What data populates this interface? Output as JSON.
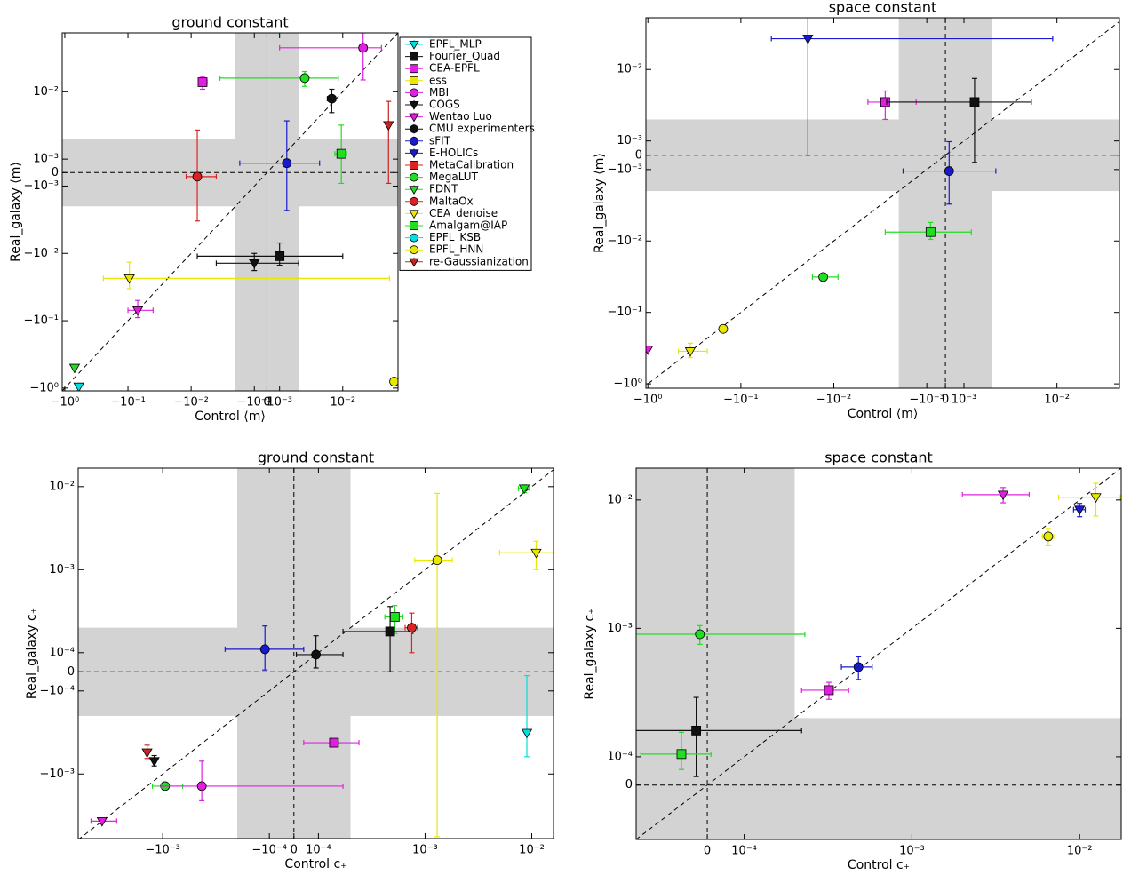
{
  "chart_data": [
    {
      "type": "scatter",
      "title": "ground constant",
      "x_label": "Control ⟨m⟩",
      "y_label": "Real_galaxy ⟨m⟩",
      "xscale": "symlog",
      "yscale": "symlog",
      "linthresh": 0.001,
      "linscale": 0.2,
      "shade": 0.002,
      "legend": "upper right",
      "xlim": [
        -1.1,
        0.075
      ],
      "ylim": [
        -1.1,
        0.075
      ],
      "xticks": [
        {
          "value": -1,
          "label": "−10⁰"
        },
        {
          "value": -0.1,
          "label": "−10⁻¹"
        },
        {
          "value": -0.01,
          "label": "−10⁻²"
        },
        {
          "value": -0.001,
          "label": "−10⁻³"
        },
        0,
        {
          "value": 0.001,
          "label": "10⁻³"
        },
        {
          "value": 0.01,
          "label": "10⁻²"
        }
      ],
      "yticks": [
        {
          "value": -1,
          "label": "−10⁰"
        },
        {
          "value": -0.1,
          "label": "−10⁻¹"
        },
        {
          "value": -0.01,
          "label": "−10⁻²"
        },
        {
          "value": -0.001,
          "label": "−10⁻³"
        },
        0,
        {
          "value": 0.001,
          "label": "10⁻³"
        },
        {
          "value": 0.01,
          "label": "10⁻²"
        }
      ],
      "series": [
        {
          "name": "EPFL_MLP",
          "color": "#00e0e0",
          "marker": "v",
          "x": -0.6,
          "y": -0.95,
          "xerr": null,
          "yerr": null
        },
        {
          "name": "Fourier_Quad",
          "color": "#111111",
          "marker": "s",
          "x": 0.001,
          "y": -0.011,
          "xerr": 0.009,
          "yerr": 0.004
        },
        {
          "name": "CEA-EPFL",
          "color": "#e020e0",
          "marker": "s",
          "x": -0.0066,
          "y": 0.0139,
          "xerr": 0.001,
          "yerr": 0.003
        },
        {
          "name": "ess",
          "color": "#e8e800",
          "marker": "s",
          "x": null,
          "y": null,
          "xerr": null,
          "yerr": null
        },
        {
          "name": "MBI",
          "color": "#e020e0",
          "marker": "o",
          "x": 0.021,
          "y": 0.045,
          "xerr": 0.02,
          "yerr": 0.03
        },
        {
          "name": "COGS",
          "color": "#111111",
          "marker": "v",
          "x": -0.001,
          "y": -0.014,
          "xerr": 0.003,
          "yerr": 0.004
        },
        {
          "name": "Wentao Luo",
          "color": "#e020e0",
          "marker": "v",
          "x": -0.07,
          "y": -0.07,
          "xerr": 0.03,
          "yerr": 0.02
        },
        {
          "name": "CMU experimenters",
          "color": "#111111",
          "marker": "o",
          "x": 0.0067,
          "y": 0.0079,
          "xerr": 0.001,
          "yerr": 0.003
        },
        {
          "name": "sFIT",
          "color": "#1a1acc",
          "marker": "o",
          "x": 0.0013,
          "y": 0.0007,
          "xerr": 0.003,
          "yerr": 0.003
        },
        {
          "name": "E-HOLICs",
          "color": "#1a1acc",
          "marker": "v",
          "x": null,
          "y": null,
          "xerr": null,
          "yerr": null
        },
        {
          "name": "MetaCalibration",
          "color": "#dd2222",
          "marker": "s",
          "x": null,
          "y": null,
          "xerr": null,
          "yerr": null
        },
        {
          "name": "MegaLUT",
          "color": "#22dd22",
          "marker": "o",
          "x": 0.0025,
          "y": 0.016,
          "xerr": 0.006,
          "yerr": 0.004
        },
        {
          "name": "FDNT",
          "color": "#22dd22",
          "marker": "v",
          "x": -0.7,
          "y": -0.5,
          "xerr": null,
          "yerr": null
        },
        {
          "name": "MaltaOx",
          "color": "#dd2222",
          "marker": "o",
          "x": -0.008,
          "y": -0.0003,
          "xerr": 0.004,
          "yerr": 0.003
        },
        {
          "name": "CEA_denoise",
          "color": "#e8e800",
          "marker": "v",
          "x": -0.095,
          "y": -0.0235,
          "xerr": 0.15,
          "yerr": 0.01
        },
        {
          "name": "Amalgam@IAP",
          "color": "#22dd22",
          "marker": "s",
          "x": 0.0095,
          "y": 0.0012,
          "xerr": 0.002,
          "yerr": 0.002
        },
        {
          "name": "EPFL_KSB",
          "color": "#00e0e0",
          "marker": "o",
          "x": null,
          "y": null,
          "xerr": null,
          "yerr": null
        },
        {
          "name": "EPFL_HNN",
          "color": "#e8e800",
          "marker": "o",
          "x": 0.065,
          "y": -0.8,
          "xerr": 0.005,
          "yerr": 0.1
        },
        {
          "name": "re-Gaussianization",
          "color": "#cc2222",
          "marker": "v",
          "x": 0.053,
          "y": 0.0032,
          "xerr": null,
          "yerr": 0.004
        }
      ]
    },
    {
      "type": "scatter",
      "title": "space constant",
      "x_label": "Control ⟨m⟩",
      "y_label": "Real_galaxy ⟨m⟩",
      "xscale": "symlog",
      "yscale": "symlog",
      "linthresh": 0.001,
      "linscale": 0.2,
      "shade": 0.002,
      "xlim": [
        -1.05,
        0.047
      ],
      "ylim": [
        -1.15,
        0.053
      ],
      "xticks": [
        {
          "value": -1,
          "label": "−10⁰"
        },
        {
          "value": -0.1,
          "label": "−10⁻¹"
        },
        {
          "value": -0.01,
          "label": "−10⁻²"
        },
        {
          "value": -0.001,
          "label": "−10⁻³"
        },
        0,
        {
          "value": 0.001,
          "label": "10⁻³"
        },
        {
          "value": 0.01,
          "label": "10⁻²"
        }
      ],
      "yticks": [
        {
          "value": -1,
          "label": "−10⁰"
        },
        {
          "value": -0.1,
          "label": "−10⁻¹"
        },
        {
          "value": -0.01,
          "label": "−10⁻²"
        },
        {
          "value": -0.001,
          "label": "−10⁻³"
        },
        0,
        {
          "value": 0.001,
          "label": "10⁻³"
        },
        {
          "value": 0.01,
          "label": "10⁻²"
        }
      ],
      "series": [
        {
          "color": "#1a1acc",
          "marker": "v",
          "x": -0.019,
          "y": 0.027,
          "xerr": 0.028,
          "yerr": 0.027
        },
        {
          "color": "#e020e0",
          "marker": "s",
          "x": -0.0028,
          "y": 0.0035,
          "xerr": 0.0015,
          "yerr": 0.0015
        },
        {
          "color": "#111111",
          "marker": "s",
          "x": 0.0013,
          "y": 0.0035,
          "xerr": 0.004,
          "yerr": 0.004
        },
        {
          "color": "#1a1acc",
          "marker": "o",
          "x": 0.0002,
          "y": -0.00105,
          "xerr": 0.002,
          "yerr": 0.002
        },
        {
          "color": "#22dd22",
          "marker": "s",
          "x": -0.0008,
          "y": -0.0075,
          "xerr": 0.002,
          "yerr": 0.002
        },
        {
          "color": "#22dd22",
          "marker": "o",
          "x": -0.013,
          "y": -0.032,
          "xerr": 0.004,
          "yerr": null
        },
        {
          "color": "#e8e800",
          "marker": "o",
          "x": -0.155,
          "y": -0.17,
          "xerr": null,
          "yerr": null
        },
        {
          "color": "#e8e800",
          "marker": "v",
          "x": -0.35,
          "y": -0.35,
          "xerr": 0.12,
          "yerr": 0.08
        },
        {
          "color": "#e020e0",
          "marker": "v",
          "x": -1.0,
          "y": -0.33,
          "xerr": null,
          "yerr": null
        }
      ]
    },
    {
      "type": "scatter",
      "title": "ground constant",
      "x_label": "Control c₊",
      "y_label": "Real_galaxy c₊",
      "xscale": "symlog",
      "yscale": "symlog",
      "linthresh": 0.0001,
      "linscale": 0.23,
      "shade": 0.0002,
      "xlim": [
        -0.0062,
        0.016
      ],
      "ylim": [
        -0.006,
        0.0167
      ],
      "xticks": [
        {
          "value": -0.001,
          "label": "−10⁻³"
        },
        {
          "value": -0.0001,
          "label": "−10⁻⁴"
        },
        0,
        {
          "value": 0.0001,
          "label": "10⁻⁴"
        },
        {
          "value": 0.001,
          "label": "10⁻³"
        },
        {
          "value": 0.01,
          "label": "10⁻²"
        }
      ],
      "yticks": [
        {
          "value": -0.001,
          "label": "−10⁻³"
        },
        {
          "value": -0.0001,
          "label": "−10⁻⁴"
        },
        0,
        {
          "value": 0.0001,
          "label": "10⁻⁴"
        },
        {
          "value": 0.001,
          "label": "10⁻³"
        },
        {
          "value": 0.01,
          "label": "10⁻²"
        }
      ],
      "series": [
        {
          "color": "#22dd22",
          "marker": "v",
          "x": 0.0085,
          "y": 0.0095,
          "xerr": 0.001,
          "yerr": 0.001
        },
        {
          "color": "#e8e800",
          "marker": "v",
          "x": 0.011,
          "y": 0.0016,
          "xerr": 0.006,
          "yerr": 0.0006
        },
        {
          "color": "#e8e800",
          "marker": "o",
          "x": 0.0013,
          "y": 0.0013,
          "xerr": 0.0005,
          "yerr": 0.007
        },
        {
          "color": "#22dd22",
          "marker": "s",
          "x": 0.00052,
          "y": 0.00027,
          "xerr": 0.0001,
          "yerr": 0.0001
        },
        {
          "color": "#111111",
          "marker": "s",
          "x": 0.00047,
          "y": 0.00018,
          "xerr": 0.0003,
          "yerr": 0.00018
        },
        {
          "color": "#dd2222",
          "marker": "o",
          "x": 0.00075,
          "y": 0.0002,
          "xerr": 0.0001,
          "yerr": 0.0001
        },
        {
          "color": "#1a1acc",
          "marker": "o",
          "x": -0.00011,
          "y": 0.00011,
          "xerr": 0.00015,
          "yerr": 0.0001
        },
        {
          "color": "#111111",
          "marker": "o",
          "x": 9e-05,
          "y": 9e-05,
          "xerr": 8e-05,
          "yerr": 7e-05
        },
        {
          "color": "#00e0e0",
          "marker": "v",
          "x": 0.009,
          "y": -0.00032,
          "xerr": null,
          "yerr": 0.0003
        },
        {
          "color": "#e020e0",
          "marker": "s",
          "x": 0.00014,
          "y": -0.00042,
          "xerr": 0.0001,
          "yerr": null
        },
        {
          "color": "#cc2222",
          "marker": "v",
          "x": -0.0014,
          "y": -0.00055,
          "xerr": null,
          "yerr": 0.0001
        },
        {
          "color": "#111111",
          "marker": "v",
          "x": -0.0012,
          "y": -0.0007,
          "xerr": null,
          "yerr": 0.0001
        },
        {
          "color": "#22dd22",
          "marker": "o",
          "x": -0.00095,
          "y": -0.0014,
          "xerr": 0.0003,
          "yerr": null
        },
        {
          "color": "#e020e0",
          "marker": "o",
          "x": -0.00043,
          "y": -0.0014,
          "xerr": 0.0006,
          "yerr": 0.0007
        },
        {
          "color": "#e020e0",
          "marker": "v",
          "x": -0.0037,
          "y": -0.0037,
          "xerr": 0.001,
          "yerr": null
        }
      ]
    },
    {
      "type": "scatter",
      "title": "space constant",
      "x_label": "Control c₊",
      "y_label": "Real_galaxy c₊",
      "xscale": "symlog",
      "yscale": "symlog",
      "linthresh": 0.0001,
      "linscale": 0.22,
      "shade": 0.0002,
      "xlim": [
        -0.00016,
        0.0177
      ],
      "ylim": [
        -0.00016,
        0.0177
      ],
      "xticks": [
        0,
        {
          "value": 0.0001,
          "label": "10⁻⁴"
        },
        {
          "value": 0.001,
          "label": "10⁻³"
        },
        {
          "value": 0.01,
          "label": "10⁻²"
        }
      ],
      "yticks": [
        0,
        {
          "value": 0.0001,
          "label": "10⁻⁴"
        },
        {
          "value": 0.001,
          "label": "10⁻³"
        },
        {
          "value": 0.01,
          "label": "10⁻²"
        }
      ],
      "series": [
        {
          "color": "#e020e0",
          "marker": "v",
          "x": 0.0035,
          "y": 0.011,
          "xerr": 0.0015,
          "yerr": 0.0015
        },
        {
          "color": "#e8e800",
          "marker": "v",
          "x": 0.0125,
          "y": 0.0105,
          "xerr": 0.005,
          "yerr": 0.003
        },
        {
          "color": "#1a1acc",
          "marker": "v",
          "x": 0.01,
          "y": 0.0084,
          "xerr": 0.0008,
          "yerr": 0.001
        },
        {
          "color": "#e8e800",
          "marker": "o",
          "x": 0.0065,
          "y": 0.0052,
          "xerr": 0.0005,
          "yerr": 0.0008
        },
        {
          "color": "#22dd22",
          "marker": "o",
          "x": -2e-05,
          "y": 0.0009,
          "xerr": 0.00025,
          "yerr": 0.00015
        },
        {
          "color": "#1a1acc",
          "marker": "o",
          "x": 0.00048,
          "y": 0.0005,
          "xerr": 0.0001,
          "yerr": 0.0001
        },
        {
          "color": "#e020e0",
          "marker": "s",
          "x": 0.00032,
          "y": 0.00033,
          "xerr": 0.0001,
          "yerr": 5e-05
        },
        {
          "color": "#111111",
          "marker": "s",
          "x": -3e-05,
          "y": 0.00016,
          "xerr": 0.00025,
          "yerr": 0.00013
        },
        {
          "color": "#22dd22",
          "marker": "s",
          "x": -7e-05,
          "y": 0.000105,
          "xerr": 8e-05,
          "yerr": 5e-05
        }
      ]
    }
  ]
}
